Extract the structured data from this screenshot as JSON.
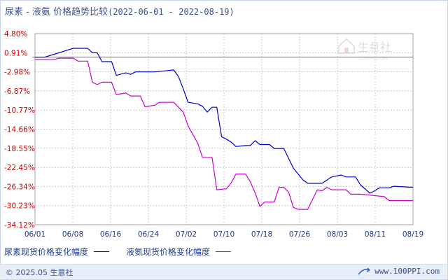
{
  "title": {
    "main": "尿素 - 液氨 价格趋势比较",
    "range": "(2022-06-01 - 2022-08-19)"
  },
  "watermark": {
    "text": "生意社",
    "sub": "100PPI.COM"
  },
  "footer": {
    "copyright": "© 2025.05 生意社",
    "url": "www.100PPI.com"
  },
  "colors": {
    "series1": "#0000cc",
    "series2": "#cc00cc",
    "grid": "#c8c8c8",
    "axis_text": "#cc0000",
    "xaxis_text": "#1f3a8a"
  },
  "chart_data": {
    "type": "line",
    "title": "尿素 - 液氨 价格趋势比较",
    "subtitle": "(2022-06-01 - 2022-08-19)",
    "xlabel": "",
    "ylabel": "",
    "x_ticks": [
      "06/01",
      "06/08",
      "06/16",
      "06/24",
      "07/02",
      "07/10",
      "07/18",
      "07/26",
      "08/03",
      "08/11",
      "08/19"
    ],
    "y_ticks": [
      "4.80%",
      "0.91%",
      "-2.98%",
      "-6.87%",
      "-10.77%",
      "-14.66%",
      "-18.55%",
      "-22.45%",
      "-26.34%",
      "-30.23%",
      "-34.12%"
    ],
    "ylim": [
      -34.12,
      4.8
    ],
    "xlim": [
      "2022-06-01",
      "2022-08-19"
    ],
    "baseline": 0,
    "grid": true,
    "legend_position": "bottom-left",
    "series": [
      {
        "name": "尿素现货价格变化幅度",
        "points": [
          [
            "2022-06-01",
            0
          ],
          [
            "2022-06-03",
            0
          ],
          [
            "2022-06-05",
            0.6
          ],
          [
            "2022-06-07",
            1.2
          ],
          [
            "2022-06-09",
            1.8
          ],
          [
            "2022-06-12",
            1.8
          ],
          [
            "2022-06-13",
            0.9
          ],
          [
            "2022-06-14",
            0.9
          ],
          [
            "2022-06-15",
            -0.9
          ],
          [
            "2022-06-17",
            -0.9
          ],
          [
            "2022-06-18",
            -3.7
          ],
          [
            "2022-06-20",
            -3.2
          ],
          [
            "2022-06-21",
            -3.5
          ],
          [
            "2022-06-22",
            -3.0
          ],
          [
            "2022-06-24",
            -3.0
          ],
          [
            "2022-06-26",
            -3.0
          ],
          [
            "2022-06-28",
            -2.8
          ],
          [
            "2022-06-30",
            -2.6
          ],
          [
            "2022-07-01",
            -4.0
          ],
          [
            "2022-07-02",
            -6.5
          ],
          [
            "2022-07-03",
            -9.2
          ],
          [
            "2022-07-05",
            -9.5
          ],
          [
            "2022-07-06",
            -10.0
          ],
          [
            "2022-07-07",
            -11.2
          ],
          [
            "2022-07-08",
            -10.2
          ],
          [
            "2022-07-09",
            -10.2
          ],
          [
            "2022-07-10",
            -16.2
          ],
          [
            "2022-07-11",
            -16.7
          ],
          [
            "2022-07-12",
            -17.3
          ],
          [
            "2022-07-13",
            -18.2
          ],
          [
            "2022-07-15",
            -18.0
          ],
          [
            "2022-07-16",
            -18.0
          ],
          [
            "2022-07-17",
            -17.0
          ],
          [
            "2022-07-18",
            -17.8
          ],
          [
            "2022-07-20",
            -17.8
          ],
          [
            "2022-07-21",
            -18.6
          ],
          [
            "2022-07-23",
            -18.6
          ],
          [
            "2022-07-25",
            -22.6
          ],
          [
            "2022-07-27",
            -25.0
          ],
          [
            "2022-07-28",
            -25.7
          ],
          [
            "2022-07-31",
            -25.7
          ],
          [
            "2022-08-02",
            -24.4
          ],
          [
            "2022-08-04",
            -24.0
          ],
          [
            "2022-08-05",
            -24.4
          ],
          [
            "2022-08-07",
            -24.4
          ],
          [
            "2022-08-08",
            -26.0
          ],
          [
            "2022-08-10",
            -27.7
          ],
          [
            "2022-08-11",
            -27.2
          ],
          [
            "2022-08-12",
            -26.6
          ],
          [
            "2022-08-14",
            -26.6
          ],
          [
            "2022-08-15",
            -26.3
          ],
          [
            "2022-08-19",
            -26.5
          ]
        ]
      },
      {
        "name": "液氨现货价格变化幅度",
        "points": [
          [
            "2022-06-01",
            -0.5
          ],
          [
            "2022-06-05",
            -0.5
          ],
          [
            "2022-06-06",
            -0.2
          ],
          [
            "2022-06-09",
            -0.2
          ],
          [
            "2022-06-10",
            -0.8
          ],
          [
            "2022-06-12",
            -0.8
          ],
          [
            "2022-06-13",
            -5.1
          ],
          [
            "2022-06-14",
            -5.6
          ],
          [
            "2022-06-15",
            -5.1
          ],
          [
            "2022-06-17",
            -5.1
          ],
          [
            "2022-06-18",
            -7.6
          ],
          [
            "2022-06-20",
            -7.3
          ],
          [
            "2022-06-21",
            -7.9
          ],
          [
            "2022-06-23",
            -7.9
          ],
          [
            "2022-06-24",
            -10.1
          ],
          [
            "2022-06-26",
            -9.8
          ],
          [
            "2022-06-27",
            -9.2
          ],
          [
            "2022-06-30",
            -9.2
          ],
          [
            "2022-07-02",
            -11.2
          ],
          [
            "2022-07-03",
            -14.0
          ],
          [
            "2022-07-05",
            -17.5
          ],
          [
            "2022-07-06",
            -20.4
          ],
          [
            "2022-07-07",
            -20.4
          ],
          [
            "2022-07-08",
            -20.4
          ],
          [
            "2022-07-09",
            -27.0
          ],
          [
            "2022-07-11",
            -26.8
          ],
          [
            "2022-07-12",
            -25.6
          ],
          [
            "2022-07-13",
            -23.8
          ],
          [
            "2022-07-15",
            -23.8
          ],
          [
            "2022-07-16",
            -25.4
          ],
          [
            "2022-07-17",
            -27.6
          ],
          [
            "2022-07-18",
            -30.4
          ],
          [
            "2022-07-19",
            -29.5
          ],
          [
            "2022-07-21",
            -29.5
          ],
          [
            "2022-07-22",
            -26.5
          ],
          [
            "2022-07-23",
            -26.5
          ],
          [
            "2022-07-24",
            -27.5
          ],
          [
            "2022-07-25",
            -30.6
          ],
          [
            "2022-07-26",
            -31.0
          ],
          [
            "2022-07-28",
            -31.0
          ],
          [
            "2022-07-30",
            -27.0
          ],
          [
            "2022-07-31",
            -27.2
          ],
          [
            "2022-08-01",
            -26.5
          ],
          [
            "2022-08-02",
            -27.0
          ],
          [
            "2022-08-05",
            -27.0
          ],
          [
            "2022-08-06",
            -27.9
          ],
          [
            "2022-08-08",
            -27.9
          ],
          [
            "2022-08-10",
            -28.1
          ],
          [
            "2022-08-13",
            -28.4
          ],
          [
            "2022-08-14",
            -29.2
          ],
          [
            "2022-08-19",
            -29.2
          ]
        ]
      }
    ]
  }
}
